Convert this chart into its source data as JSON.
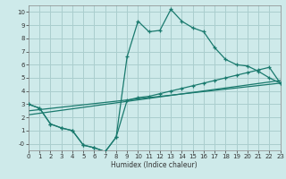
{
  "xlabel": "Humidex (Indice chaleur)",
  "bg_color": "#ceeaea",
  "grid_color": "#aacece",
  "line_color": "#1a7a6e",
  "xmin": 0,
  "xmax": 23,
  "ymin": -0.5,
  "ymax": 10.5,
  "yticks": [
    0,
    1,
    2,
    3,
    4,
    5,
    6,
    7,
    8,
    9,
    10
  ],
  "ytick_labels": [
    "-0",
    "1",
    "2",
    "3",
    "4",
    "5",
    "6",
    "7",
    "8",
    "9",
    "10"
  ],
  "series1_x": [
    0,
    1,
    2,
    3,
    4,
    5,
    6,
    7,
    8,
    9,
    10,
    11,
    12,
    13,
    14,
    15,
    16,
    17,
    18,
    19,
    20,
    21,
    22,
    23
  ],
  "series1_y": [
    3.0,
    2.7,
    1.5,
    1.2,
    1.0,
    -0.1,
    -0.3,
    -0.6,
    0.5,
    6.6,
    9.3,
    8.5,
    8.6,
    10.2,
    9.3,
    8.8,
    8.5,
    7.3,
    6.4,
    6.0,
    5.9,
    5.5,
    5.0,
    4.6
  ],
  "series2_x": [
    0,
    1,
    2,
    3,
    4,
    5,
    6,
    7,
    8,
    9,
    10,
    11,
    12,
    13,
    14,
    15,
    16,
    17,
    18,
    19,
    20,
    21,
    22,
    23
  ],
  "series2_y": [
    3.0,
    2.7,
    1.5,
    1.2,
    1.0,
    -0.1,
    -0.3,
    -0.6,
    0.5,
    3.3,
    3.5,
    3.6,
    3.8,
    4.0,
    4.2,
    4.4,
    4.6,
    4.8,
    5.0,
    5.2,
    5.4,
    5.6,
    5.8,
    4.6
  ],
  "line1_x": [
    0,
    23
  ],
  "line1_y": [
    2.5,
    4.6
  ],
  "line2_x": [
    0,
    23
  ],
  "line2_y": [
    2.2,
    4.8
  ]
}
